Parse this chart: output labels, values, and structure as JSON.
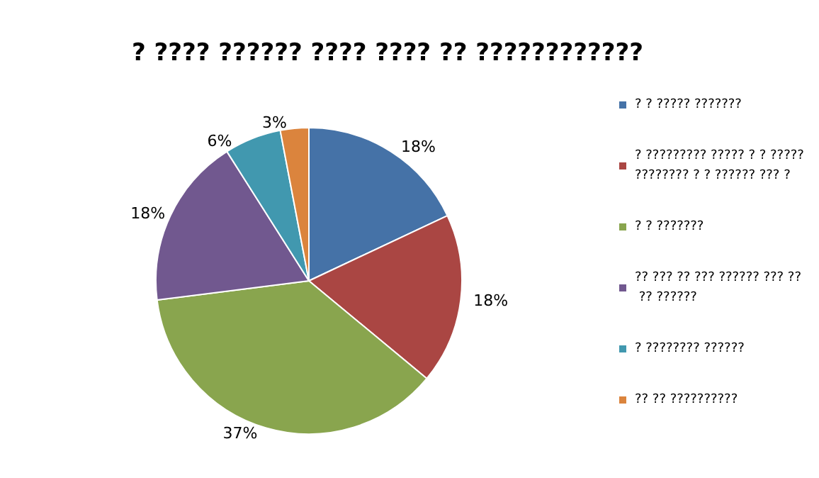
{
  "chart_data": {
    "type": "pie",
    "title": "? ???? ?????? ???? ???? ?? ????????????",
    "categories": [
      "? ? ????? ???????",
      "? ????????? ????? ? ? ????????????? ? ? ?????? ??? ?",
      "? ? ???????",
      "?? ??? ?? ??? ?????? ??? ?? ?? ??????",
      "? ???????? ??????",
      "?? ?? ??????????"
    ],
    "values": [
      18,
      18,
      37,
      18,
      6,
      3
    ],
    "colors": [
      "#4572a7",
      "#aa4643",
      "#89a54e",
      "#71588f",
      "#4198af",
      "#db843d"
    ],
    "value_labels": [
      "18%",
      "18%",
      "37%",
      "18%",
      "6%",
      "3%"
    ],
    "legend": "right"
  }
}
